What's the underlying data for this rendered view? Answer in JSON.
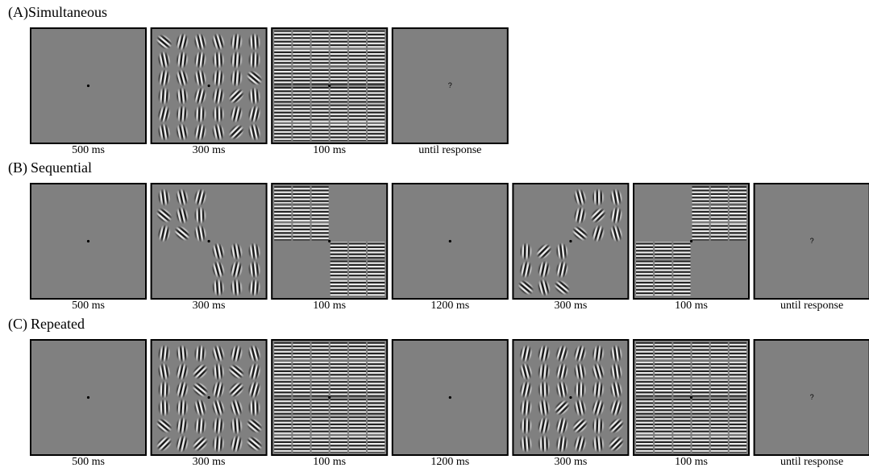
{
  "panels": [
    {
      "label": "(A)",
      "title": "Simultaneous",
      "frames": [
        {
          "duration": "500 ms"
        },
        {
          "duration": "300 ms"
        },
        {
          "duration": "100 ms"
        },
        {
          "duration": "until response",
          "prompt": "?"
        }
      ]
    },
    {
      "label": "(B)",
      "title": "Sequential",
      "frames": [
        {
          "duration": "500 ms"
        },
        {
          "duration": "300 ms"
        },
        {
          "duration": "100 ms"
        },
        {
          "duration": "1200 ms"
        },
        {
          "duration": "300 ms"
        },
        {
          "duration": "100 ms"
        },
        {
          "duration": "until response",
          "prompt": "?"
        }
      ]
    },
    {
      "label": "(C)",
      "title": "Repeated",
      "frames": [
        {
          "duration": "500 ms"
        },
        {
          "duration": "300 ms"
        },
        {
          "duration": "100 ms"
        },
        {
          "duration": "1200 ms"
        },
        {
          "duration": "300 ms"
        },
        {
          "duration": "100 ms"
        },
        {
          "duration": "until response",
          "prompt": "?"
        }
      ]
    }
  ]
}
